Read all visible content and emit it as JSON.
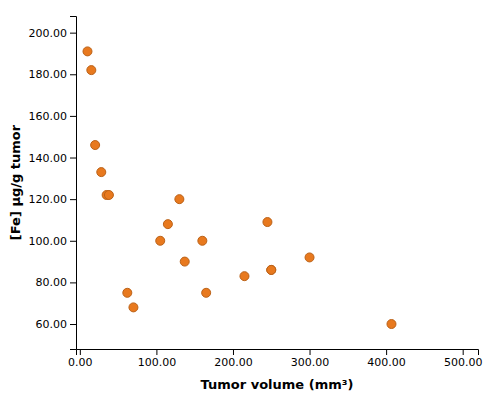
{
  "chart_data": {
    "type": "scatter",
    "x": [
      10,
      15,
      20,
      28,
      35,
      38,
      62,
      70,
      105,
      115,
      130,
      137,
      160,
      165,
      215,
      245,
      250,
      300,
      250,
      407
    ],
    "values": [
      191,
      182,
      146,
      133,
      122,
      122,
      75,
      68,
      100,
      108,
      120,
      90,
      100,
      75,
      83,
      109,
      86,
      92,
      86,
      60
    ],
    "color": "#E8791E",
    "x_label": "Tumor volume (mm³)",
    "y_label": "[Fe] μg/g tumor",
    "xlim": [
      -5,
      520
    ],
    "ylim": [
      48,
      208
    ],
    "xticks": [
      {
        "value": 0,
        "label": "0.00"
      },
      {
        "value": 100,
        "label": "100.00"
      },
      {
        "value": 200,
        "label": "200.00"
      },
      {
        "value": 300,
        "label": "300.00"
      },
      {
        "value": 400,
        "label": "400.00"
      },
      {
        "value": 500,
        "label": "500.00"
      }
    ],
    "yticks": [
      {
        "value": 60,
        "label": "60.00"
      },
      {
        "value": 80,
        "label": "80.00"
      },
      {
        "value": 100,
        "label": "100.00"
      },
      {
        "value": 120,
        "label": "120.00"
      },
      {
        "value": 140,
        "label": "140.00"
      },
      {
        "value": 160,
        "label": "160.00"
      },
      {
        "value": 180,
        "label": "180.00"
      },
      {
        "value": 200,
        "label": "200.00"
      }
    ],
    "grid": false
  }
}
